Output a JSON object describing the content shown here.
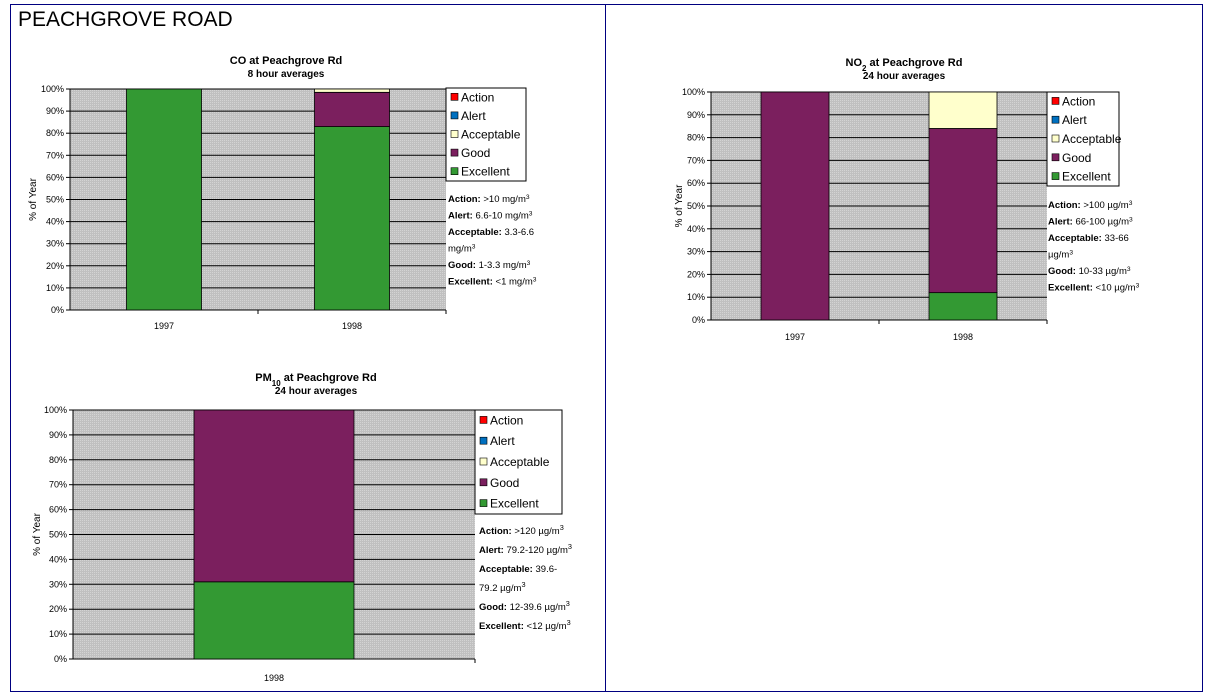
{
  "page_title": "PEACHGROVE ROAD",
  "colors": {
    "Action": "#ff0000",
    "Alert": "#0070c0",
    "Acceptable": "#ffffcc",
    "Good": "#7b1f5e",
    "Excellent": "#339933",
    "plot_bg": "#c0c0c0"
  },
  "chart_data": [
    {
      "type": "bar",
      "stacked": true,
      "title": "CO at Peachgrove Rd",
      "subtitle": "8 hour averages",
      "ylabel": "% of Year",
      "ylim": [
        0,
        100
      ],
      "categories": [
        "1997",
        "1998"
      ],
      "series": [
        {
          "name": "Excellent",
          "values": [
            100,
            83
          ]
        },
        {
          "name": "Good",
          "values": [
            0,
            15.5
          ]
        },
        {
          "name": "Acceptable",
          "values": [
            0,
            1.5
          ]
        },
        {
          "name": "Alert",
          "values": [
            0,
            0
          ]
        },
        {
          "name": "Action",
          "values": [
            0,
            0
          ]
        }
      ],
      "legend": [
        "Action",
        "Alert",
        "Acceptable",
        "Good",
        "Excellent"
      ],
      "notes": [
        [
          {
            "b": true,
            "t": "Action:"
          },
          {
            "t": " >10 mg/m"
          },
          {
            "sup": "3"
          }
        ],
        [
          {
            "b": true,
            "t": "Alert:"
          },
          {
            "t": " 6.6-10 mg/m"
          },
          {
            "sup": "3"
          }
        ],
        [
          {
            "b": true,
            "t": "Acceptable:"
          },
          {
            "t": " 3.3-6.6"
          }
        ],
        [
          {
            "t": "mg/m"
          },
          {
            "sup": "3"
          }
        ],
        [
          {
            "b": true,
            "t": "Good:"
          },
          {
            "t": " 1-3.3 mg/m"
          },
          {
            "sup": "3"
          }
        ],
        [
          {
            "b": true,
            "t": "Excellent:"
          },
          {
            "t": " <1 mg/m"
          },
          {
            "sup": "3"
          }
        ]
      ]
    },
    {
      "type": "bar",
      "stacked": true,
      "title": "NO",
      "title_sub": "2",
      "title_rest": " at Peachgrove Rd",
      "subtitle": "24 hour averages",
      "ylabel": "% of Year",
      "ylim": [
        0,
        100
      ],
      "categories": [
        "1997",
        "1998"
      ],
      "series": [
        {
          "name": "Excellent",
          "values": [
            0,
            12
          ]
        },
        {
          "name": "Good",
          "values": [
            100,
            72
          ]
        },
        {
          "name": "Acceptable",
          "values": [
            0,
            16
          ]
        },
        {
          "name": "Alert",
          "values": [
            0,
            0
          ]
        },
        {
          "name": "Action",
          "values": [
            0,
            0
          ]
        }
      ],
      "legend": [
        "Action",
        "Alert",
        "Acceptable",
        "Good",
        "Excellent"
      ],
      "notes": [
        [
          {
            "b": true,
            "t": "Action:"
          },
          {
            "t": " >100 µg/m"
          },
          {
            "sup": "3"
          }
        ],
        [
          {
            "b": true,
            "t": "Alert:"
          },
          {
            "t": " 66-100 µg/m"
          },
          {
            "sup": "3"
          }
        ],
        [
          {
            "b": true,
            "t": "Acceptable:"
          },
          {
            "t": " 33-66"
          }
        ],
        [
          {
            "t": "µg/m"
          },
          {
            "sup": "3"
          }
        ],
        [
          {
            "b": true,
            "t": "Good:"
          },
          {
            "t": " 10-33 µg/m"
          },
          {
            "sup": "3"
          }
        ],
        [
          {
            "b": true,
            "t": "Excellent:"
          },
          {
            "t": " <10 µg/m"
          },
          {
            "sup": "3"
          }
        ]
      ]
    },
    {
      "type": "bar",
      "stacked": true,
      "title": "PM",
      "title_sub": "10",
      "title_rest": " at Peachgrove Rd",
      "subtitle": "24 hour averages",
      "ylabel": "% of Year",
      "ylim": [
        0,
        100
      ],
      "categories": [
        "1998"
      ],
      "series": [
        {
          "name": "Excellent",
          "values": [
            31
          ]
        },
        {
          "name": "Good",
          "values": [
            69
          ]
        },
        {
          "name": "Acceptable",
          "values": [
            0
          ]
        },
        {
          "name": "Alert",
          "values": [
            0
          ]
        },
        {
          "name": "Action",
          "values": [
            0
          ]
        }
      ],
      "legend": [
        "Action",
        "Alert",
        "Acceptable",
        "Good",
        "Excellent"
      ],
      "notes": [
        [
          {
            "b": true,
            "t": "Action:"
          },
          {
            "t": " >120 µg/m"
          },
          {
            "sup": "3"
          }
        ],
        [
          {
            "b": true,
            "t": "Alert:"
          },
          {
            "t": " 79.2-120 µg/m"
          },
          {
            "sup": "3"
          }
        ],
        [
          {
            "b": true,
            "t": "Acceptable:"
          },
          {
            "t": " 39.6-"
          }
        ],
        [
          {
            "t": "79.2 µg/m"
          },
          {
            "sup": "3"
          }
        ],
        [
          {
            "b": true,
            "t": "Good:"
          },
          {
            "t": " 12-39.6 µg/m"
          },
          {
            "sup": "3"
          }
        ],
        [
          {
            "b": true,
            "t": "Excellent:"
          },
          {
            "t": " <12 µg/m"
          },
          {
            "sup": "3"
          }
        ]
      ]
    }
  ]
}
